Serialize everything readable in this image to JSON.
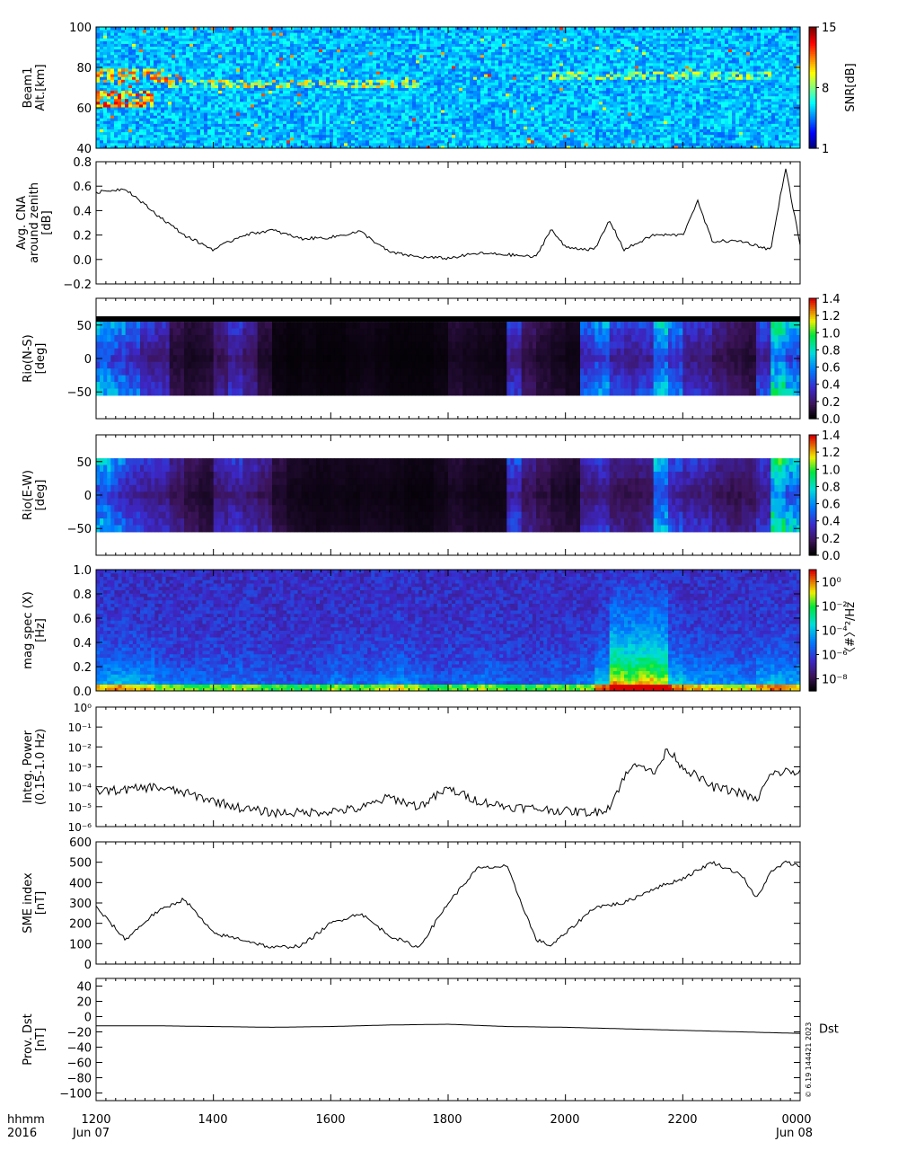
{
  "figure": {
    "time_labels": [
      "1200",
      "1400",
      "1600",
      "1800",
      "2000",
      "2200",
      "0000"
    ],
    "date_labels": [
      "Jun 07",
      "Jun 08"
    ],
    "hhmm_label": "hhmm",
    "year_label": "2016",
    "stamp": "© 6.19 144421 2023"
  },
  "chart_data": [
    {
      "type": "heatmap",
      "panel_id": "beam",
      "ylabel_lines": [
        "Beam1",
        "Alt.[km]"
      ],
      "ylim": [
        40,
        100
      ],
      "yticks": [
        40,
        60,
        80,
        100
      ],
      "colorbar": {
        "label": "SNR[dB]",
        "ticks": [
          "1",
          "8",
          "15"
        ],
        "range": [
          1,
          15
        ],
        "scale": "linear"
      },
      "description_layers": [
        {
          "altitude_km": [
            60,
            68
          ],
          "time": [
            "1200",
            "1300"
          ],
          "snr_db": 14
        },
        {
          "altitude_km": [
            73,
            80
          ],
          "time": [
            "1200",
            "1315"
          ],
          "snr_db": 13
        },
        {
          "altitude_km": [
            70,
            74
          ],
          "time": [
            "1315",
            "1730"
          ],
          "snr_db": 11
        },
        {
          "altitude_km": [
            74,
            78
          ],
          "time": [
            "1930",
            "2330"
          ],
          "snr_db": 10
        }
      ]
    },
    {
      "type": "line",
      "panel_id": "cna",
      "ylabel_lines": [
        "Avg. CNA",
        "around zenith",
        "[dB]"
      ],
      "ylim": [
        -0.2,
        0.8
      ],
      "yticks": [
        "−0.2",
        "0.0",
        "0.2",
        "0.4",
        "0.6",
        "0.8"
      ],
      "x": [
        "1200",
        "1230",
        "1300",
        "1330",
        "1400",
        "1430",
        "1500",
        "1530",
        "1600",
        "1630",
        "1700",
        "1730",
        "1800",
        "1830",
        "1900",
        "1930",
        "1945",
        "2000",
        "2030",
        "2045",
        "2100",
        "2130",
        "2200",
        "2215",
        "2230",
        "2300",
        "2330",
        "2345",
        "0000"
      ],
      "values": [
        0.55,
        0.58,
        0.38,
        0.2,
        0.08,
        0.2,
        0.24,
        0.17,
        0.18,
        0.23,
        0.06,
        0.02,
        0.01,
        0.05,
        0.04,
        0.02,
        0.25,
        0.1,
        0.08,
        0.32,
        0.08,
        0.2,
        0.2,
        0.48,
        0.15,
        0.15,
        0.08,
        0.75,
        0.12
      ]
    },
    {
      "type": "heatmap",
      "panel_id": "rio_ns",
      "ylabel_lines": [
        "Rio(N-S)",
        "[deg]"
      ],
      "ylim": [
        -90,
        90
      ],
      "yticks": [
        "−50",
        "0",
        "50"
      ],
      "colorbar": {
        "label": "",
        "ticks": [
          "0.0",
          "0.2",
          "0.4",
          "0.6",
          "0.8",
          "1.0",
          "1.2",
          "1.4"
        ],
        "range": [
          0,
          1.4
        ],
        "scale": "linear"
      },
      "columns": [
        0.55,
        0.5,
        0.42,
        0.3,
        0.28,
        0.12,
        0.08,
        0.1,
        0.2,
        0.3,
        0.22,
        0.1,
        0.03,
        0.02,
        0.03,
        0.02,
        0.02,
        0.03,
        0.04,
        0.03,
        0.02,
        0.02,
        0.02,
        0.03,
        0.08,
        0.06,
        0.05,
        0.04,
        0.3,
        0.15,
        0.1,
        0.07,
        0.05,
        0.4,
        0.5,
        0.35,
        0.3,
        0.35,
        0.6,
        0.45,
        0.3,
        0.28,
        0.2,
        0.15,
        0.12,
        0.35,
        0.7,
        0.55
      ]
    },
    {
      "type": "heatmap",
      "panel_id": "rio_ew",
      "ylabel_lines": [
        "Rio(E-W)",
        "[deg]"
      ],
      "ylim": [
        -90,
        90
      ],
      "yticks": [
        "−50",
        "0",
        "50"
      ],
      "colorbar": {
        "label": "",
        "ticks": [
          "0.0",
          "0.2",
          "0.4",
          "0.6",
          "0.8",
          "1.0",
          "1.2",
          "1.4"
        ],
        "range": [
          0,
          1.4
        ],
        "scale": "linear"
      },
      "columns": [
        0.55,
        0.45,
        0.35,
        0.3,
        0.28,
        0.2,
        0.14,
        0.1,
        0.25,
        0.3,
        0.25,
        0.2,
        0.1,
        0.06,
        0.05,
        0.04,
        0.05,
        0.04,
        0.05,
        0.05,
        0.04,
        0.03,
        0.03,
        0.05,
        0.08,
        0.06,
        0.05,
        0.05,
        0.35,
        0.2,
        0.15,
        0.1,
        0.08,
        0.25,
        0.3,
        0.2,
        0.18,
        0.2,
        0.55,
        0.35,
        0.3,
        0.28,
        0.22,
        0.18,
        0.2,
        0.3,
        0.75,
        0.6
      ]
    },
    {
      "type": "heatmap",
      "panel_id": "magspec",
      "ylabel_lines": [
        "mag spec (X)",
        "[Hz]"
      ],
      "ylim": [
        0,
        1.0
      ],
      "yticks": [
        "0.0",
        "0.2",
        "0.4",
        "0.6",
        "0.8",
        "1.0"
      ],
      "colorbar": {
        "label": "〈#〉²/Hz",
        "ticks": [
          "10⁻⁸",
          "10⁻⁶",
          "10⁻⁴",
          "10⁻²",
          "10⁰"
        ],
        "range": [
          -9,
          1
        ],
        "scale": "log"
      },
      "activity": [
        0.55,
        0.6,
        0.55,
        0.5,
        0.35,
        0.3,
        0.28,
        0.3,
        0.3,
        0.32,
        0.3,
        0.25,
        0.22,
        0.2,
        0.2,
        0.25,
        0.35,
        0.3,
        0.3,
        0.4,
        0.45,
        0.35,
        0.25,
        0.2,
        0.25,
        0.3,
        0.35,
        0.3,
        0.25,
        0.2,
        0.25,
        0.3,
        0.3,
        0.35,
        0.7,
        0.95,
        0.8,
        0.95,
        0.8,
        0.7,
        0.55,
        0.5,
        0.45,
        0.45,
        0.4,
        0.6,
        0.6,
        0.55
      ]
    },
    {
      "type": "line",
      "panel_id": "integ",
      "ylabel_lines": [
        "Integ. Power",
        "(0.15-1.0 Hz)"
      ],
      "scale": "log",
      "ylim": [
        1e-06,
        1
      ],
      "yticks": [
        "10⁻⁶",
        "10⁻⁵",
        "10⁻⁴",
        "10⁻³",
        "10⁻²",
        "10⁻¹",
        "10⁰"
      ],
      "x": [
        "1200",
        "1230",
        "1300",
        "1330",
        "1400",
        "1430",
        "1500",
        "1530",
        "1600",
        "1630",
        "1700",
        "1730",
        "1800",
        "1830",
        "1900",
        "1930",
        "2000",
        "2030",
        "2045",
        "2100",
        "2115",
        "2130",
        "2145",
        "2200",
        "2230",
        "2300",
        "2315",
        "2330",
        "2345",
        "0000"
      ],
      "values": [
        6e-05,
        7e-05,
        0.0001,
        5e-05,
        2e-05,
        8e-06,
        5e-06,
        5e-06,
        6e-06,
        8e-06,
        3e-05,
        1e-05,
        8e-05,
        2e-05,
        1e-05,
        8e-06,
        6e-06,
        5e-06,
        1e-05,
        0.0003,
        0.002,
        0.0004,
        0.008,
        0.001,
        0.0001,
        5e-05,
        2e-05,
        0.0004,
        0.0006,
        0.0005
      ]
    },
    {
      "type": "line",
      "panel_id": "sme",
      "ylabel_lines": [
        "SME index",
        "[nT]"
      ],
      "ylim": [
        0,
        600
      ],
      "yticks": [
        "0",
        "100",
        "200",
        "300",
        "400",
        "500",
        "600"
      ],
      "x": [
        "1200",
        "1230",
        "1300",
        "1330",
        "1400",
        "1430",
        "1500",
        "1530",
        "1600",
        "1630",
        "1700",
        "1730",
        "1800",
        "1830",
        "1900",
        "1930",
        "1945",
        "2000",
        "2030",
        "2100",
        "2130",
        "2200",
        "2230",
        "2300",
        "2315",
        "2330",
        "2345",
        "0000"
      ],
      "values": [
        280,
        120,
        250,
        320,
        150,
        120,
        80,
        90,
        200,
        250,
        140,
        80,
        300,
        470,
        480,
        120,
        90,
        150,
        280,
        300,
        370,
        420,
        500,
        440,
        320,
        450,
        500,
        480
      ]
    },
    {
      "type": "line",
      "panel_id": "dst",
      "ylabel_lines": [
        "Prov. Dst",
        "[nT]"
      ],
      "ylim": [
        -110,
        50
      ],
      "yticks": [
        "−100",
        "−80",
        "−60",
        "−40",
        "−20",
        "0",
        "20",
        "40"
      ],
      "series_label": "Dst",
      "x": [
        "1200",
        "1300",
        "1400",
        "1500",
        "1600",
        "1700",
        "1800",
        "1900",
        "2000",
        "2100",
        "2200",
        "2300",
        "0000"
      ],
      "values": [
        -12,
        -12,
        -13,
        -14,
        -13,
        -11,
        -10,
        -13,
        -14,
        -16,
        -18,
        -20,
        -22
      ]
    }
  ]
}
